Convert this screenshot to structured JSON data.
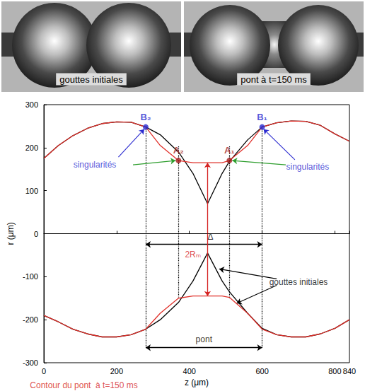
{
  "panels": [
    {
      "label": "gouttes initiales"
    },
    {
      "label": "pont à t=150 ms"
    }
  ],
  "chart_data": {
    "type": "line",
    "x_label": "z (μm)",
    "y_label": "r (μm)",
    "x": [
      0,
      40,
      80,
      120,
      160,
      200,
      240,
      280,
      320,
      370,
      410,
      450,
      490,
      510,
      560,
      600,
      640,
      680,
      720,
      760,
      800,
      840
    ],
    "series": [
      {
        "name": "gouttes initiales",
        "color": "#000000",
        "values": [
          175,
          205,
          228,
          245,
          256,
          260,
          259,
          248,
          230,
          190,
          140,
          70,
          140,
          168,
          218,
          248,
          258,
          262,
          261,
          252,
          232,
          215
        ]
      },
      {
        "name": "gouttes initiales",
        "color": "#000000",
        "values": [
          -190,
          -205,
          -222,
          -233,
          -240,
          -240,
          -235,
          -222,
          -200,
          -160,
          -110,
          -45,
          -110,
          -135,
          -185,
          -220,
          -235,
          -240,
          -240,
          -233,
          -220,
          -200
        ]
      },
      {
        "name": "Contour du pont  à t=150 ms",
        "color": "#e0302a",
        "values": [
          175,
          205,
          228,
          245,
          256,
          260,
          259,
          248,
          205,
          170,
          165,
          165,
          165,
          170,
          205,
          248,
          258,
          262,
          261,
          252,
          232,
          215
        ]
      },
      {
        "name": "Contour du pont  à t=150 ms",
        "color": "#e0302a",
        "values": [
          -190,
          -205,
          -222,
          -233,
          -240,
          -240,
          -235,
          -222,
          -185,
          -150,
          -145,
          -145,
          -145,
          -148,
          -185,
          -222,
          -235,
          -240,
          -240,
          -233,
          -220,
          -200
        ]
      }
    ],
    "xlim": [
      0,
      840
    ],
    "xticks": [
      0,
      200,
      400,
      600,
      800
    ],
    "ylim": [
      -300,
      300
    ],
    "yticks": [
      -300,
      -200,
      -100,
      0,
      100,
      200,
      300
    ],
    "grid": false,
    "points": [
      {
        "label": "B₂",
        "x": 280,
        "y": 248,
        "color": "#2a2ad0"
      },
      {
        "label": "A₂",
        "x": 370,
        "y": 170,
        "color": "#a31e1e"
      },
      {
        "label": "A₁",
        "x": 510,
        "y": 170,
        "color": "#a31e1e"
      },
      {
        "label": "B₁",
        "x": 600,
        "y": 248,
        "color": "#2a2ad0"
      }
    ],
    "vlines": [
      {
        "x": 280,
        "y": [
          -265,
          250
        ]
      },
      {
        "x": 370,
        "y": [
          -150,
          205
        ]
      },
      {
        "x": 510,
        "y": [
          -150,
          205
        ]
      },
      {
        "x": 600,
        "y": [
          -265,
          250
        ]
      }
    ],
    "hlines": [
      0
    ],
    "dimension_arrows": [
      {
        "from": [
          280,
          -25
        ],
        "to": [
          600,
          -25
        ],
        "color": "#000000"
      },
      {
        "from": [
          450,
          -145
        ],
        "to": [
          450,
          165
        ],
        "color": "#d42020"
      },
      {
        "from": [
          280,
          -265
        ],
        "to": [
          600,
          -265
        ],
        "color": "#000000"
      }
    ],
    "pointer_arrows": [
      {
        "from": [
          205,
          178
        ],
        "to": [
          276,
          243
        ],
        "color": "#2a2ad0"
      },
      {
        "from": [
          245,
          160
        ],
        "to": [
          362,
          170
        ],
        "color": "#2e9e2e"
      },
      {
        "from": [
          665,
          160
        ],
        "to": [
          518,
          170
        ],
        "color": "#2e9e2e"
      },
      {
        "from": [
          690,
          172
        ],
        "to": [
          604,
          243
        ],
        "color": "#2a2ad0"
      },
      {
        "from": [
          640,
          -105
        ],
        "to": [
          482,
          -82
        ],
        "color": "#000000"
      },
      {
        "from": [
          640,
          -120
        ],
        "to": [
          530,
          -162
        ],
        "color": "#000000"
      },
      {
        "from": [
          100,
          -325
        ],
        "to": [
          70,
          -222
        ],
        "color": "#d42020"
      }
    ],
    "annotations": [
      {
        "text": "singularités",
        "x": 140,
        "y": 160,
        "color": "#2a2ad0"
      },
      {
        "text": "singularités",
        "x": 725,
        "y": 155,
        "color": "#2a2ad0"
      },
      {
        "text": "Δ",
        "x": 458,
        "y": -8,
        "color": "#000000"
      },
      {
        "text": "2Rₘ",
        "x": 410,
        "y": -48,
        "color": "#d42020"
      },
      {
        "text": "pont",
        "x": 440,
        "y": -245,
        "color": "#000000"
      },
      {
        "text": "gouttes initiales",
        "x": 700,
        "y": -112,
        "color": "#000000"
      },
      {
        "text": "Contour du pont  à t=150 ms",
        "x": 110,
        "y": -352,
        "color": "#d42020"
      }
    ]
  }
}
